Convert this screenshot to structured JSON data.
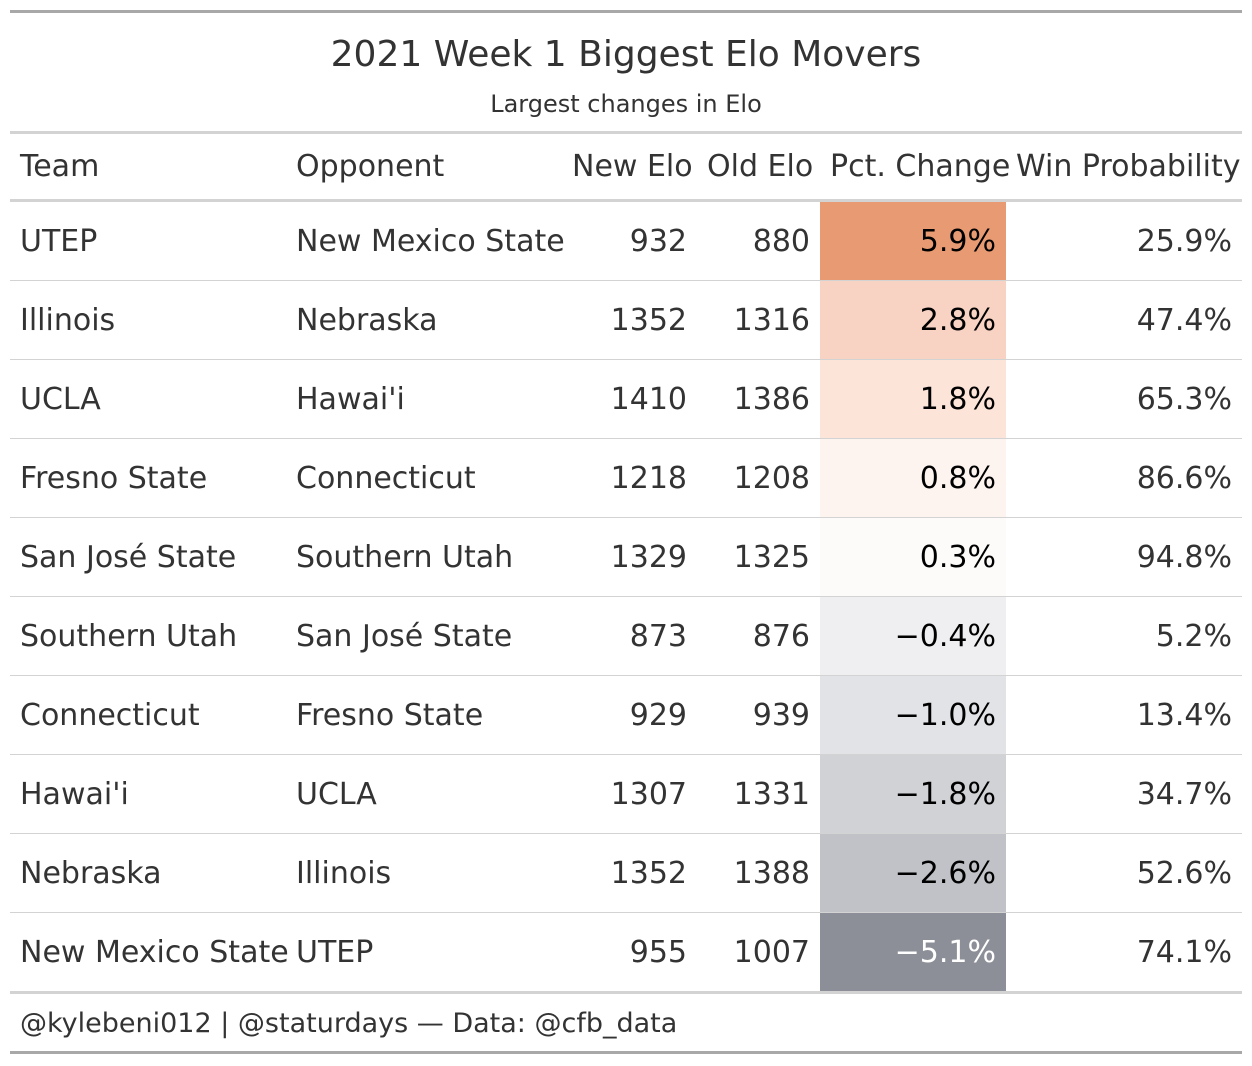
{
  "chart_data": {
    "type": "table",
    "title": "2021 Week 1 Biggest Elo Movers",
    "subtitle": "Largest changes in Elo",
    "columns": [
      "Team",
      "Opponent",
      "New Elo",
      "Old Elo",
      "Pct. Change",
      "Win Probability"
    ],
    "rows": [
      {
        "team": "UTEP",
        "opponent": "New Mexico State",
        "new_elo": 932,
        "old_elo": 880,
        "pct_change": "5.9%",
        "win_prob": "25.9%",
        "fill": "#e89a72",
        "text_color": "#000000"
      },
      {
        "team": "Illinois",
        "opponent": "Nebraska",
        "new_elo": 1352,
        "old_elo": 1316,
        "pct_change": "2.8%",
        "win_prob": "47.4%",
        "fill": "#f8d2c2",
        "text_color": "#000000"
      },
      {
        "team": "UCLA",
        "opponent": "Hawai'i",
        "new_elo": 1410,
        "old_elo": 1386,
        "pct_change": "1.8%",
        "win_prob": "65.3%",
        "fill": "#fce4d9",
        "text_color": "#000000"
      },
      {
        "team": "Fresno State",
        "opponent": "Connecticut",
        "new_elo": 1218,
        "old_elo": 1208,
        "pct_change": "0.8%",
        "win_prob": "86.6%",
        "fill": "#fdf4f0",
        "text_color": "#000000"
      },
      {
        "team": "San José State",
        "opponent": "Southern Utah",
        "new_elo": 1329,
        "old_elo": 1325,
        "pct_change": "0.3%",
        "win_prob": "94.8%",
        "fill": "#fcfbfa",
        "text_color": "#000000"
      },
      {
        "team": "Southern Utah",
        "opponent": "San José State",
        "new_elo": 873,
        "old_elo": 876,
        "pct_change": "−0.4%",
        "win_prob": "5.2%",
        "fill": "#efeff1",
        "text_color": "#000000"
      },
      {
        "team": "Connecticut",
        "opponent": "Fresno State",
        "new_elo": 929,
        "old_elo": 939,
        "pct_change": "−1.0%",
        "win_prob": "13.4%",
        "fill": "#e2e3e6",
        "text_color": "#000000"
      },
      {
        "team": "Hawai'i",
        "opponent": "UCLA",
        "new_elo": 1307,
        "old_elo": 1331,
        "pct_change": "−1.8%",
        "win_prob": "34.7%",
        "fill": "#d1d2d6",
        "text_color": "#000000"
      },
      {
        "team": "Nebraska",
        "opponent": "Illinois",
        "new_elo": 1352,
        "old_elo": 1388,
        "pct_change": "−2.6%",
        "win_prob": "52.6%",
        "fill": "#c0c2c7",
        "text_color": "#000000"
      },
      {
        "team": "New Mexico State",
        "opponent": "UTEP",
        "new_elo": 955,
        "old_elo": 1007,
        "pct_change": "−5.1%",
        "win_prob": "74.1%",
        "fill": "#8c8f98",
        "text_color": "#ffffff"
      }
    ],
    "source_note": "@kylebeni012 | @staturdays — Data: @cfb_data"
  }
}
